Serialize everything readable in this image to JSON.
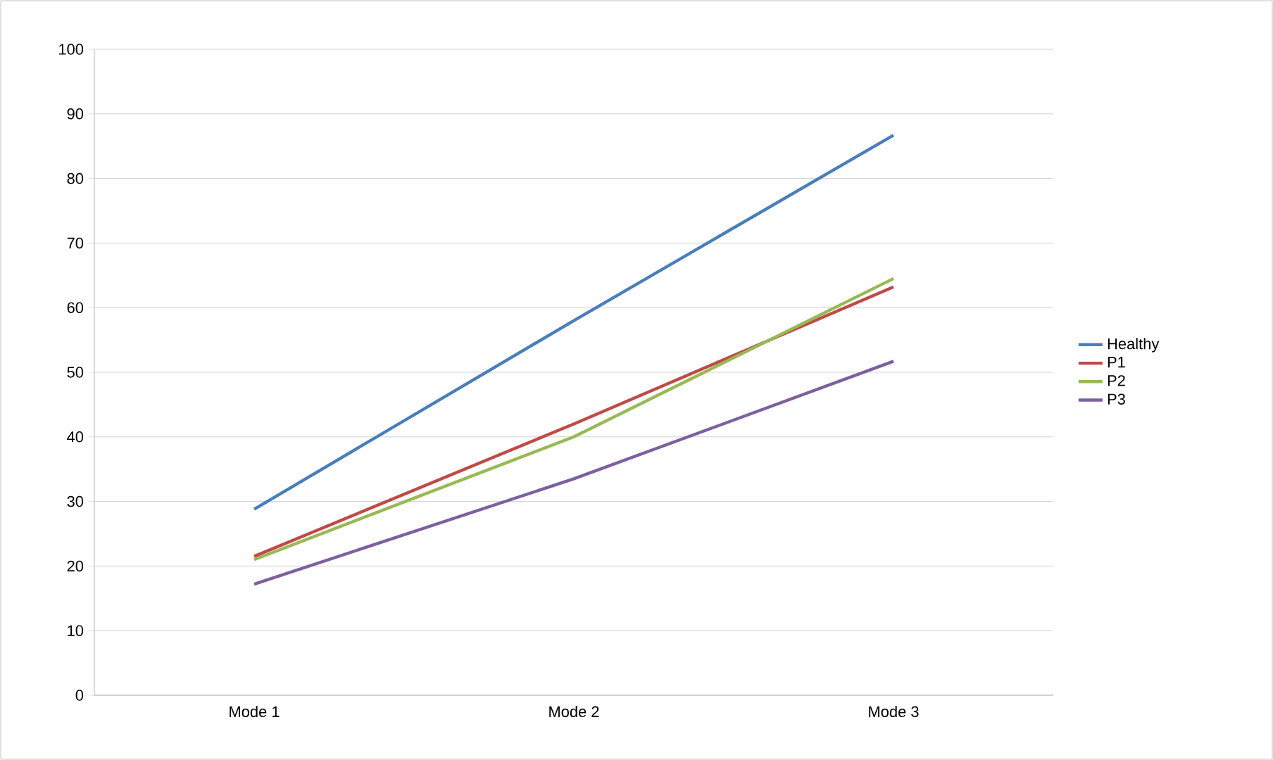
{
  "chart_data": {
    "type": "line",
    "categories": [
      "Mode 1",
      "Mode 2",
      "Mode 3"
    ],
    "series": [
      {
        "name": "Healthy",
        "color": "#4a7ebb",
        "values": [
          28.8,
          58,
          86.7
        ]
      },
      {
        "name": "P1",
        "color": "#be4b48",
        "values": [
          21.5,
          42,
          63.2
        ]
      },
      {
        "name": "P2",
        "color": "#98b954",
        "values": [
          21,
          40,
          64.5
        ]
      },
      {
        "name": "P3",
        "color": "#7d60a0",
        "values": [
          17.2,
          33.5,
          51.7
        ]
      }
    ],
    "ylim": [
      0,
      100
    ],
    "yticks": [
      0,
      10,
      20,
      30,
      40,
      50,
      60,
      70,
      80,
      90,
      100
    ],
    "grid": "y",
    "legend": "right",
    "marker": "none",
    "line_style": "solid"
  }
}
